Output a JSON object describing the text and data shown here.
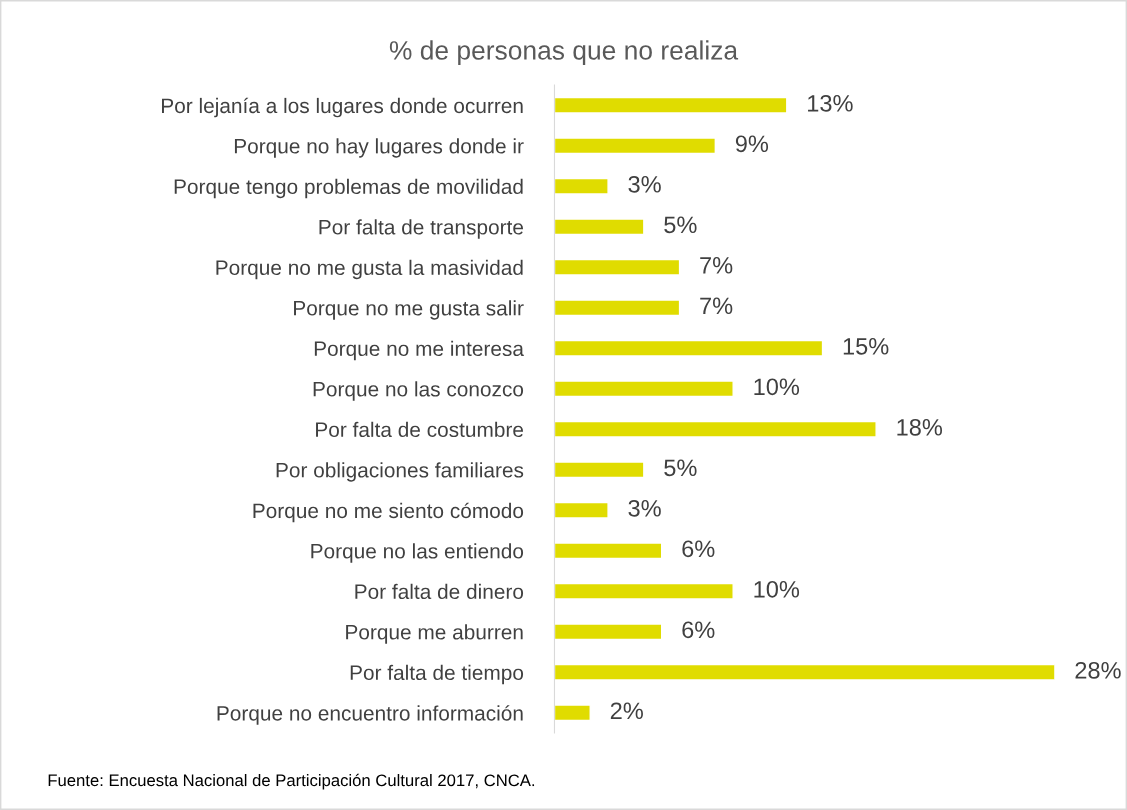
{
  "chart_data": {
    "type": "bar",
    "orientation": "horizontal",
    "title": "% de personas que no realiza",
    "categories": [
      "Por lejanía a los lugares donde ocurren",
      "Porque no hay lugares donde ir",
      "Porque tengo problemas de movilidad",
      "Por falta de transporte",
      "Porque no me gusta la masividad",
      "Porque no me gusta salir",
      "Porque no me interesa",
      "Porque no las conozco",
      "Por falta de costumbre",
      "Por obligaciones familiares",
      "Porque no me siento cómodo",
      "Porque no las entiendo",
      "Por falta de dinero",
      "Porque me aburren",
      "Por falta de tiempo",
      "Porque no encuentro información"
    ],
    "values": [
      13,
      9,
      3,
      5,
      7,
      7,
      15,
      10,
      18,
      5,
      3,
      6,
      10,
      6,
      28,
      2
    ],
    "value_labels": [
      "13%",
      "9%",
      "3%",
      "5%",
      "7%",
      "7%",
      "15%",
      "10%",
      "18%",
      "5%",
      "3%",
      "6%",
      "10%",
      "6%",
      "28%",
      "2%"
    ],
    "color": "#e0dc00",
    "grid": false,
    "legend": false,
    "annotations": [
      "Fuente: Encuesta Nacional de Participación Cultural 2017, CNCA."
    ]
  }
}
